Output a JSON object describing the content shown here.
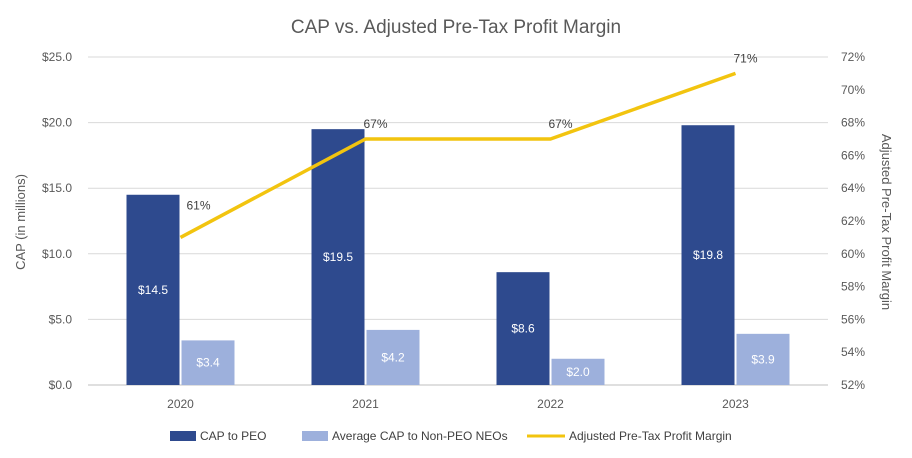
{
  "chart_data": {
    "type": "bar",
    "title": "CAP vs. Adjusted Pre-Tax Profit Margin",
    "categories": [
      "2020",
      "2021",
      "2022",
      "2023"
    ],
    "ylabel": "CAP (in millions)",
    "y2label": "Adjusted Pre-Tax Profit Margin",
    "ylim": [
      0,
      25
    ],
    "y_ticks": [
      "$0.0",
      "$5.0",
      "$10.0",
      "$15.0",
      "$20.0",
      "$25.0"
    ],
    "y2lim": [
      52,
      72
    ],
    "y2_ticks": [
      "52%",
      "54%",
      "56%",
      "58%",
      "60%",
      "62%",
      "64%",
      "66%",
      "68%",
      "70%",
      "72%"
    ],
    "grid": true,
    "legend_position": "bottom",
    "series": [
      {
        "name": "CAP to PEO",
        "type": "bar",
        "color": "#2E4A8E",
        "values": [
          14.5,
          19.5,
          8.6,
          19.8
        ],
        "labels": [
          "$14.5",
          "$19.5",
          "$8.6",
          "$19.8"
        ]
      },
      {
        "name": "Average CAP to Non-PEO NEOs",
        "type": "bar",
        "color": "#9DB0DC",
        "values": [
          3.4,
          4.2,
          2.0,
          3.9
        ],
        "labels": [
          "$3.4",
          "$4.2",
          "$2.0",
          "$3.9"
        ]
      },
      {
        "name": "Adjusted Pre-Tax Profit Margin",
        "type": "line",
        "axis": "right",
        "color": "#F2C40F",
        "values": [
          61,
          67,
          67,
          71
        ],
        "labels": [
          "61%",
          "67%",
          "67%",
          "71%"
        ]
      }
    ]
  }
}
